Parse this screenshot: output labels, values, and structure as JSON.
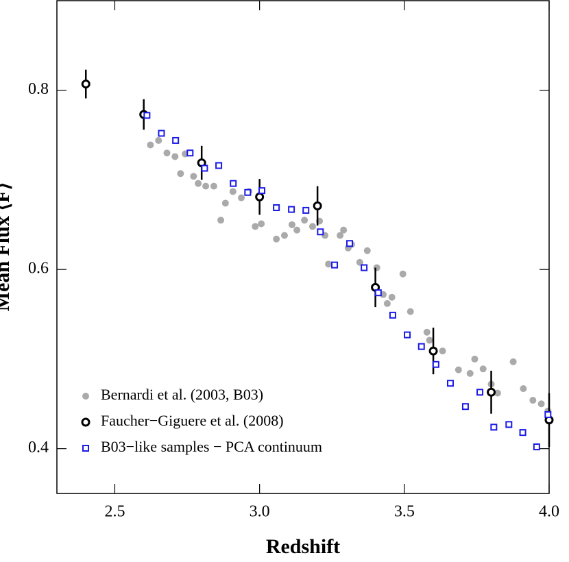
{
  "chart_data": {
    "type": "scatter",
    "xlabel": "Redshift",
    "ylabel": "Mean Flux ⟨F⟩",
    "xlim": [
      2.3,
      4.0
    ],
    "ylim": [
      0.35,
      0.9
    ],
    "xticks": [
      2.5,
      {
        "value": 3,
        "label": "3.0"
      },
      3.5,
      {
        "value": 4,
        "label": "4.0"
      }
    ],
    "yticks": [
      0.4,
      0.6,
      0.8
    ],
    "legend": "lower left",
    "series": [
      {
        "name": "Bernardi et al. (2003, B03)",
        "color": "#aaaaaa",
        "marker": "filled-circle",
        "x": [
          2.623,
          2.651,
          2.68,
          2.708,
          2.727,
          2.743,
          2.772,
          2.788,
          2.814,
          2.842,
          2.866,
          2.882,
          2.908,
          2.937,
          2.963,
          2.985,
          3.006,
          3.058,
          3.086,
          3.112,
          3.129,
          3.155,
          3.183,
          3.207,
          3.226,
          3.238,
          3.278,
          3.29,
          3.306,
          3.318,
          3.346,
          3.372,
          3.405,
          3.427,
          3.441,
          3.457,
          3.495,
          3.521,
          3.578,
          3.587,
          3.632,
          3.687,
          3.727,
          3.743,
          3.772,
          3.8,
          3.822,
          3.876,
          3.911,
          3.944,
          3.973,
          3.996
        ],
        "values": [
          0.739,
          0.744,
          0.73,
          0.726,
          0.707,
          0.729,
          0.704,
          0.696,
          0.693,
          0.693,
          0.655,
          0.674,
          0.687,
          0.68,
          0.687,
          0.648,
          0.651,
          0.634,
          0.638,
          0.65,
          0.644,
          0.655,
          0.648,
          0.654,
          0.638,
          0.606,
          0.638,
          0.644,
          0.624,
          0.628,
          0.608,
          0.621,
          0.602,
          0.572,
          0.562,
          0.569,
          0.595,
          0.553,
          0.53,
          0.521,
          0.509,
          0.488,
          0.484,
          0.5,
          0.489,
          0.472,
          0.462,
          0.497,
          0.467,
          0.454,
          0.45,
          0.442
        ]
      },
      {
        "name": "Faucher−Giguere et al. (2008)",
        "color": "#000000",
        "marker": "open-circle",
        "x": [
          2.4,
          2.6,
          2.8,
          3.0,
          3.2,
          3.4,
          3.6,
          3.8,
          4.0
        ],
        "values": [
          0.807,
          0.773,
          0.719,
          0.681,
          0.671,
          0.58,
          0.509,
          0.463,
          0.432
        ],
        "errors": [
          0.016,
          0.017,
          0.019,
          0.02,
          0.022,
          0.022,
          0.026,
          0.024,
          0.03
        ]
      },
      {
        "name": "B03−like samples − PCA continuum",
        "color": "#1a1ae6",
        "marker": "open-square",
        "x": [
          2.611,
          2.661,
          2.71,
          2.76,
          2.81,
          2.859,
          2.909,
          2.959,
          3.008,
          3.058,
          3.11,
          3.16,
          3.21,
          3.259,
          3.311,
          3.361,
          3.41,
          3.46,
          3.51,
          3.559,
          3.609,
          3.659,
          3.711,
          3.761,
          3.809,
          3.861,
          3.909,
          3.957,
          3.996
        ],
        "values": [
          0.772,
          0.752,
          0.744,
          0.73,
          0.713,
          0.716,
          0.696,
          0.686,
          0.688,
          0.669,
          0.667,
          0.666,
          0.642,
          0.605,
          0.629,
          0.602,
          0.574,
          0.549,
          0.527,
          0.514,
          0.494,
          0.473,
          0.447,
          0.463,
          0.424,
          0.427,
          0.418,
          0.402,
          0.438
        ]
      }
    ]
  }
}
